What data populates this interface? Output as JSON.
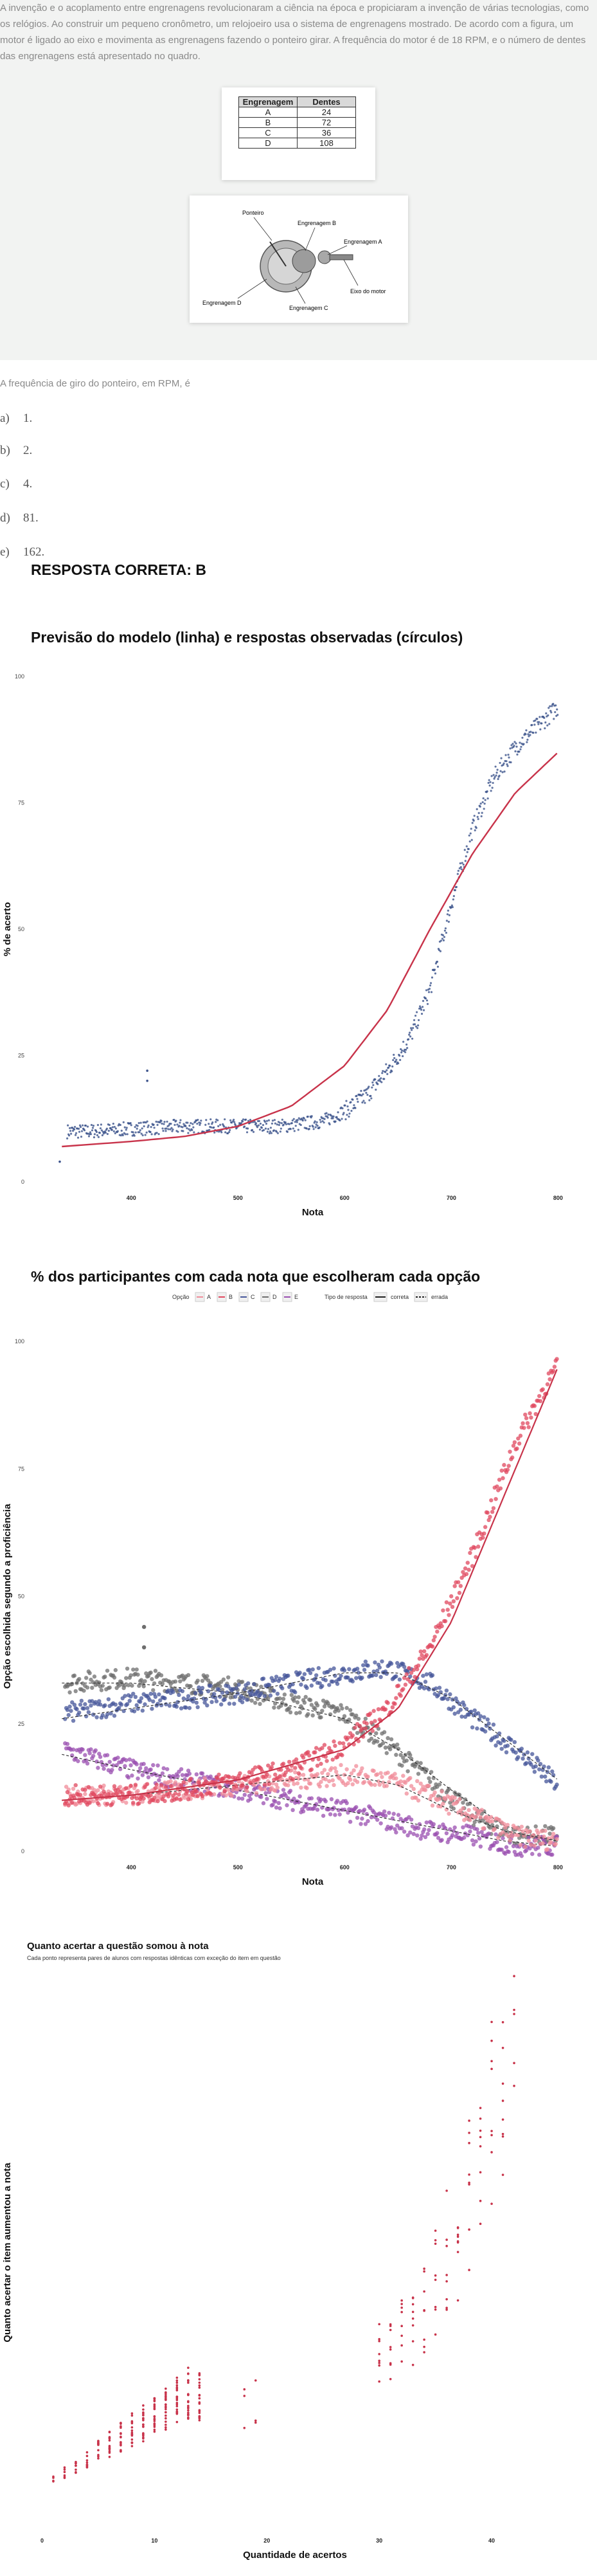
{
  "question": {
    "stem": "A invenção e o acoplamento entre engrenagens revolucionaram a ciência na época e propiciaram a invenção de várias tecnologias, como os relógios. Ao construir um pequeno cronômetro, um relojoeiro usa o sistema de engrenagens mostrado. De acordo com a figura, um motor é ligado ao eixo e movimenta as engrenagens fazendo o ponteiro girar. A frequência do motor é de 18 RPM, e o número de dentes das engrenagens está apresentado no quadro.",
    "table": {
      "headers": [
        "Engrenagem",
        "Dentes"
      ],
      "rows": [
        [
          "A",
          "24"
        ],
        [
          "B",
          "72"
        ],
        [
          "C",
          "36"
        ],
        [
          "D",
          "108"
        ]
      ]
    },
    "figure_labels": {
      "ponteiro": "Ponteiro",
      "b": "Engrenagem B",
      "a": "Engrenagem A",
      "eixo": "Eixo do motor",
      "d": "Engrenagem D",
      "c": "Engrenagem C"
    },
    "prompt": "A frequência de giro do ponteiro, em RPM, é",
    "options": [
      {
        "letter": "a)",
        "text": "1."
      },
      {
        "letter": "b)",
        "text": "2."
      },
      {
        "letter": "c)",
        "text": "4."
      },
      {
        "letter": "d)",
        "text": "81."
      },
      {
        "letter": "e)",
        "text": "162."
      }
    ],
    "answer": "RESPOSTA CORRETA: B"
  },
  "colors": {
    "model_line": "#c8334a",
    "observed": "#3b528b",
    "opt_A": "#f08c9a",
    "opt_B": "#e0485f",
    "opt_C": "#46569a",
    "opt_D": "#6e6e6e",
    "opt_E": "#9a4fb0",
    "gain": "#c8334a"
  },
  "chart_data": [
    {
      "type": "scatter",
      "title": "Previsão do modelo (linha) e respostas observadas (círculos)",
      "xlabel": "Nota",
      "ylabel": "% de acerto",
      "xlim": [
        330,
        810
      ],
      "ylim": [
        0,
        100
      ],
      "xticks": [
        "400",
        "500",
        "600",
        "700",
        "800"
      ],
      "yticks": [
        "0",
        "25",
        "50",
        "75",
        "100"
      ],
      "grid": false,
      "series": [
        {
          "kind": "line",
          "points": [
            [
              335,
              7
            ],
            [
              400,
              8
            ],
            [
              450,
              9
            ],
            [
              500,
              11
            ],
            [
              550,
              15
            ],
            [
              600,
              23
            ],
            [
              640,
              34
            ],
            [
              680,
              50
            ],
            [
              720,
              65
            ],
            [
              760,
              77
            ],
            [
              800,
              85
            ]
          ]
        },
        {
          "kind": "points",
          "points": [
            [
              335,
              10
            ],
            [
              360,
              10
            ],
            [
              400,
              10.5
            ],
            [
              450,
              11
            ],
            [
              500,
              11
            ],
            [
              540,
              11
            ],
            [
              580,
              12
            ],
            [
              600,
              14
            ],
            [
              620,
              17
            ],
            [
              640,
              22
            ],
            [
              660,
              28
            ],
            [
              680,
              38
            ],
            [
              700,
              55
            ],
            [
              720,
              70
            ],
            [
              740,
              80
            ],
            [
              760,
              86
            ],
            [
              780,
              90
            ],
            [
              800,
              94
            ],
            [
              790,
              88
            ],
            [
              333,
              4
            ],
            [
              415,
              20
            ],
            [
              415,
              22
            ]
          ]
        }
      ]
    },
    {
      "type": "scatter",
      "title": "% dos participantes com cada nota que escolheram cada opção",
      "xlabel": "Nota",
      "ylabel": "Opção escolhida segundo a proficiência",
      "xlim": [
        330,
        810
      ],
      "ylim": [
        0,
        100
      ],
      "xticks": [
        "400",
        "500",
        "600",
        "700",
        "800"
      ],
      "yticks": [
        "0",
        "25",
        "50",
        "75",
        "100"
      ],
      "grid": false,
      "legend": {
        "position": "top",
        "option_title": "Opção",
        "options": [
          "A",
          "B",
          "C",
          "D",
          "E"
        ],
        "type_title": "Tipo de resposta",
        "types": [
          "correta",
          "errada"
        ]
      },
      "series": [
        {
          "name": "A",
          "kind": "line",
          "points": [
            [
              335,
              10
            ],
            [
              400,
              11
            ],
            [
              500,
              13
            ],
            [
              600,
              15
            ],
            [
              650,
              13
            ],
            [
              700,
              8
            ],
            [
              750,
              4
            ],
            [
              800,
              2
            ]
          ]
        },
        {
          "name": "A",
          "kind": "points",
          "points": [
            [
              335,
              11
            ],
            [
              400,
              11
            ],
            [
              450,
              12
            ],
            [
              500,
              13
            ],
            [
              550,
              14
            ],
            [
              600,
              15
            ],
            [
              640,
              14
            ],
            [
              680,
              11
            ],
            [
              720,
              7
            ],
            [
              760,
              3
            ],
            [
              800,
              2
            ]
          ]
        },
        {
          "name": "B",
          "kind": "line",
          "points": [
            [
              335,
              10
            ],
            [
              400,
              11
            ],
            [
              500,
              14
            ],
            [
              600,
              20
            ],
            [
              650,
              28
            ],
            [
              700,
              45
            ],
            [
              750,
              70
            ],
            [
              800,
              95
            ]
          ]
        },
        {
          "name": "B",
          "kind": "points",
          "points": [
            [
              335,
              11
            ],
            [
              400,
              11
            ],
            [
              450,
              12
            ],
            [
              500,
              14
            ],
            [
              550,
              16
            ],
            [
              600,
              21
            ],
            [
              640,
              28
            ],
            [
              680,
              40
            ],
            [
              720,
              58
            ],
            [
              760,
              80
            ],
            [
              790,
              92
            ],
            [
              800,
              95
            ]
          ]
        },
        {
          "name": "C",
          "kind": "line",
          "points": [
            [
              335,
              26
            ],
            [
              400,
              28
            ],
            [
              500,
              31
            ],
            [
              600,
              35
            ],
            [
              650,
              35
            ],
            [
              700,
              30
            ],
            [
              750,
              22
            ],
            [
              800,
              14
            ]
          ]
        },
        {
          "name": "C",
          "kind": "points",
          "points": [
            [
              335,
              27
            ],
            [
              400,
              29
            ],
            [
              450,
              30
            ],
            [
              500,
              31
            ],
            [
              550,
              33
            ],
            [
              600,
              35
            ],
            [
              640,
              36
            ],
            [
              680,
              33
            ],
            [
              720,
              26
            ],
            [
              760,
              20
            ],
            [
              800,
              13
            ]
          ]
        },
        {
          "name": "D",
          "kind": "line",
          "points": [
            [
              335,
              33
            ],
            [
              400,
              33
            ],
            [
              500,
              31
            ],
            [
              600,
              26
            ],
            [
              650,
              20
            ],
            [
              700,
              12
            ],
            [
              750,
              5
            ],
            [
              800,
              2
            ]
          ]
        },
        {
          "name": "D",
          "kind": "points",
          "points": [
            [
              335,
              33
            ],
            [
              400,
              34
            ],
            [
              450,
              33
            ],
            [
              500,
              32
            ],
            [
              550,
              29
            ],
            [
              600,
              27
            ],
            [
              640,
              21
            ],
            [
              680,
              14
            ],
            [
              720,
              7
            ],
            [
              760,
              3
            ],
            [
              800,
              3
            ],
            [
              412,
              40
            ],
            [
              412,
              44
            ]
          ]
        },
        {
          "name": "E",
          "kind": "line",
          "points": [
            [
              335,
              19
            ],
            [
              400,
              16
            ],
            [
              500,
              12
            ],
            [
              600,
              8
            ],
            [
              650,
              6
            ],
            [
              700,
              4
            ],
            [
              750,
              2
            ],
            [
              800,
              1
            ]
          ]
        },
        {
          "name": "E",
          "kind": "points",
          "points": [
            [
              335,
              20
            ],
            [
              400,
              16
            ],
            [
              450,
              14
            ],
            [
              500,
              12
            ],
            [
              550,
              10
            ],
            [
              600,
              8
            ],
            [
              640,
              6
            ],
            [
              680,
              4
            ],
            [
              720,
              3
            ],
            [
              760,
              1
            ],
            [
              800,
              1
            ]
          ]
        }
      ]
    },
    {
      "type": "scatter",
      "title": "Quanto acertar a questão somou à nota",
      "subtitle": "Cada ponto representa pares de alunos com respostas idênticas com exceção do item em questão",
      "xlabel": "Quantidade de acertos",
      "ylabel": "Quanto acertar o item aumentou a nota",
      "xlim": [
        -1,
        46
      ],
      "ylim": [
        -2,
        34
      ],
      "xticks": [
        "0",
        "10",
        "20",
        "30",
        "40"
      ],
      "yticks": [
        "0",
        "10",
        "20",
        "30"
      ],
      "grid": false,
      "series": [
        {
          "kind": "points",
          "points": [
            [
              1,
              1
            ],
            [
              2,
              1.5
            ],
            [
              3,
              2
            ],
            [
              4,
              2.5
            ],
            [
              5,
              3
            ],
            [
              6,
              3.5
            ],
            [
              7,
              4
            ],
            [
              8,
              4.5
            ],
            [
              9,
              5
            ],
            [
              10,
              5.5
            ],
            [
              11,
              6
            ],
            [
              12,
              6.5
            ],
            [
              13,
              7
            ],
            [
              14,
              7
            ],
            [
              18,
              6
            ],
            [
              19,
              6.5
            ],
            [
              30,
              10
            ],
            [
              31,
              9.5
            ],
            [
              32,
              11
            ],
            [
              33,
              12
            ],
            [
              34,
              13
            ],
            [
              35,
              15
            ],
            [
              36,
              17
            ],
            [
              37,
              18
            ],
            [
              38,
              21
            ],
            [
              39,
              24
            ],
            [
              40,
              27
            ],
            [
              41,
              30
            ],
            [
              42,
              33
            ]
          ]
        }
      ]
    }
  ]
}
